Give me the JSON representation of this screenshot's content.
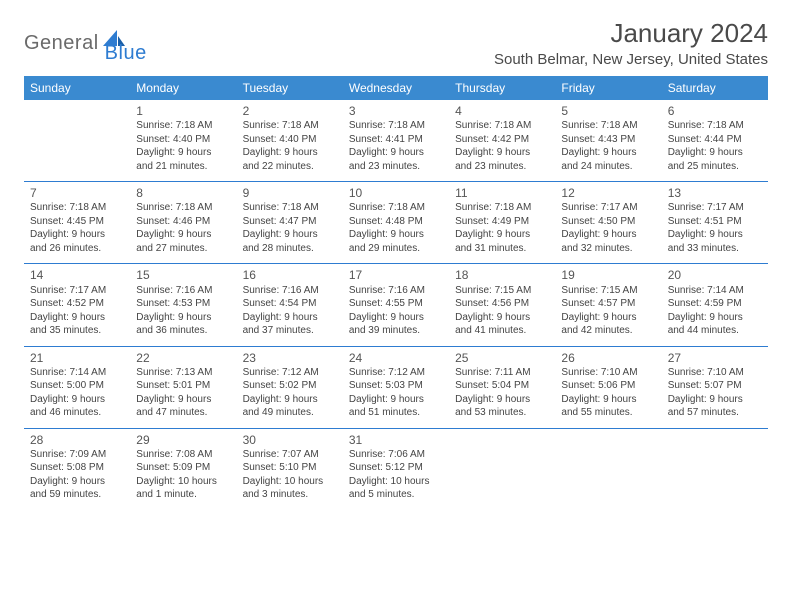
{
  "brand": {
    "part1": "General",
    "part2": "Blue"
  },
  "title": "January 2024",
  "location": "South Belmar, New Jersey, United States",
  "colors": {
    "header_bg": "#3a8ad0",
    "header_text": "#ffffff",
    "rule": "#2e7cd1",
    "body_text": "#444444",
    "title_text": "#4a4a4a"
  },
  "day_names": [
    "Sunday",
    "Monday",
    "Tuesday",
    "Wednesday",
    "Thursday",
    "Friday",
    "Saturday"
  ],
  "weeks": [
    [
      null,
      {
        "n": "1",
        "sr": "Sunrise: 7:18 AM",
        "ss": "Sunset: 4:40 PM",
        "d1": "Daylight: 9 hours",
        "d2": "and 21 minutes."
      },
      {
        "n": "2",
        "sr": "Sunrise: 7:18 AM",
        "ss": "Sunset: 4:40 PM",
        "d1": "Daylight: 9 hours",
        "d2": "and 22 minutes."
      },
      {
        "n": "3",
        "sr": "Sunrise: 7:18 AM",
        "ss": "Sunset: 4:41 PM",
        "d1": "Daylight: 9 hours",
        "d2": "and 23 minutes."
      },
      {
        "n": "4",
        "sr": "Sunrise: 7:18 AM",
        "ss": "Sunset: 4:42 PM",
        "d1": "Daylight: 9 hours",
        "d2": "and 23 minutes."
      },
      {
        "n": "5",
        "sr": "Sunrise: 7:18 AM",
        "ss": "Sunset: 4:43 PM",
        "d1": "Daylight: 9 hours",
        "d2": "and 24 minutes."
      },
      {
        "n": "6",
        "sr": "Sunrise: 7:18 AM",
        "ss": "Sunset: 4:44 PM",
        "d1": "Daylight: 9 hours",
        "d2": "and 25 minutes."
      }
    ],
    [
      {
        "n": "7",
        "sr": "Sunrise: 7:18 AM",
        "ss": "Sunset: 4:45 PM",
        "d1": "Daylight: 9 hours",
        "d2": "and 26 minutes."
      },
      {
        "n": "8",
        "sr": "Sunrise: 7:18 AM",
        "ss": "Sunset: 4:46 PM",
        "d1": "Daylight: 9 hours",
        "d2": "and 27 minutes."
      },
      {
        "n": "9",
        "sr": "Sunrise: 7:18 AM",
        "ss": "Sunset: 4:47 PM",
        "d1": "Daylight: 9 hours",
        "d2": "and 28 minutes."
      },
      {
        "n": "10",
        "sr": "Sunrise: 7:18 AM",
        "ss": "Sunset: 4:48 PM",
        "d1": "Daylight: 9 hours",
        "d2": "and 29 minutes."
      },
      {
        "n": "11",
        "sr": "Sunrise: 7:18 AM",
        "ss": "Sunset: 4:49 PM",
        "d1": "Daylight: 9 hours",
        "d2": "and 31 minutes."
      },
      {
        "n": "12",
        "sr": "Sunrise: 7:17 AM",
        "ss": "Sunset: 4:50 PM",
        "d1": "Daylight: 9 hours",
        "d2": "and 32 minutes."
      },
      {
        "n": "13",
        "sr": "Sunrise: 7:17 AM",
        "ss": "Sunset: 4:51 PM",
        "d1": "Daylight: 9 hours",
        "d2": "and 33 minutes."
      }
    ],
    [
      {
        "n": "14",
        "sr": "Sunrise: 7:17 AM",
        "ss": "Sunset: 4:52 PM",
        "d1": "Daylight: 9 hours",
        "d2": "and 35 minutes."
      },
      {
        "n": "15",
        "sr": "Sunrise: 7:16 AM",
        "ss": "Sunset: 4:53 PM",
        "d1": "Daylight: 9 hours",
        "d2": "and 36 minutes."
      },
      {
        "n": "16",
        "sr": "Sunrise: 7:16 AM",
        "ss": "Sunset: 4:54 PM",
        "d1": "Daylight: 9 hours",
        "d2": "and 37 minutes."
      },
      {
        "n": "17",
        "sr": "Sunrise: 7:16 AM",
        "ss": "Sunset: 4:55 PM",
        "d1": "Daylight: 9 hours",
        "d2": "and 39 minutes."
      },
      {
        "n": "18",
        "sr": "Sunrise: 7:15 AM",
        "ss": "Sunset: 4:56 PM",
        "d1": "Daylight: 9 hours",
        "d2": "and 41 minutes."
      },
      {
        "n": "19",
        "sr": "Sunrise: 7:15 AM",
        "ss": "Sunset: 4:57 PM",
        "d1": "Daylight: 9 hours",
        "d2": "and 42 minutes."
      },
      {
        "n": "20",
        "sr": "Sunrise: 7:14 AM",
        "ss": "Sunset: 4:59 PM",
        "d1": "Daylight: 9 hours",
        "d2": "and 44 minutes."
      }
    ],
    [
      {
        "n": "21",
        "sr": "Sunrise: 7:14 AM",
        "ss": "Sunset: 5:00 PM",
        "d1": "Daylight: 9 hours",
        "d2": "and 46 minutes."
      },
      {
        "n": "22",
        "sr": "Sunrise: 7:13 AM",
        "ss": "Sunset: 5:01 PM",
        "d1": "Daylight: 9 hours",
        "d2": "and 47 minutes."
      },
      {
        "n": "23",
        "sr": "Sunrise: 7:12 AM",
        "ss": "Sunset: 5:02 PM",
        "d1": "Daylight: 9 hours",
        "d2": "and 49 minutes."
      },
      {
        "n": "24",
        "sr": "Sunrise: 7:12 AM",
        "ss": "Sunset: 5:03 PM",
        "d1": "Daylight: 9 hours",
        "d2": "and 51 minutes."
      },
      {
        "n": "25",
        "sr": "Sunrise: 7:11 AM",
        "ss": "Sunset: 5:04 PM",
        "d1": "Daylight: 9 hours",
        "d2": "and 53 minutes."
      },
      {
        "n": "26",
        "sr": "Sunrise: 7:10 AM",
        "ss": "Sunset: 5:06 PM",
        "d1": "Daylight: 9 hours",
        "d2": "and 55 minutes."
      },
      {
        "n": "27",
        "sr": "Sunrise: 7:10 AM",
        "ss": "Sunset: 5:07 PM",
        "d1": "Daylight: 9 hours",
        "d2": "and 57 minutes."
      }
    ],
    [
      {
        "n": "28",
        "sr": "Sunrise: 7:09 AM",
        "ss": "Sunset: 5:08 PM",
        "d1": "Daylight: 9 hours",
        "d2": "and 59 minutes."
      },
      {
        "n": "29",
        "sr": "Sunrise: 7:08 AM",
        "ss": "Sunset: 5:09 PM",
        "d1": "Daylight: 10 hours",
        "d2": "and 1 minute."
      },
      {
        "n": "30",
        "sr": "Sunrise: 7:07 AM",
        "ss": "Sunset: 5:10 PM",
        "d1": "Daylight: 10 hours",
        "d2": "and 3 minutes."
      },
      {
        "n": "31",
        "sr": "Sunrise: 7:06 AM",
        "ss": "Sunset: 5:12 PM",
        "d1": "Daylight: 10 hours",
        "d2": "and 5 minutes."
      },
      null,
      null,
      null
    ]
  ]
}
